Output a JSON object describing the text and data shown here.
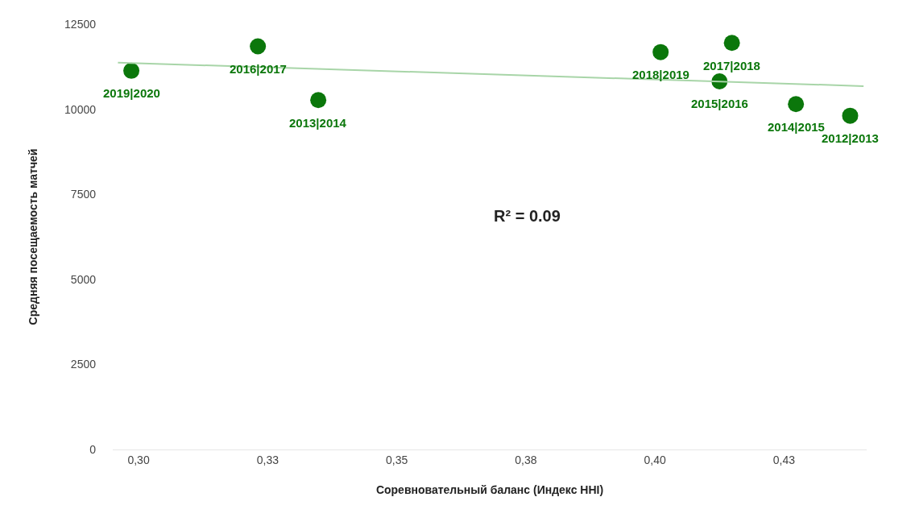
{
  "chart_data": {
    "type": "scatter",
    "xlabel": "Соревновательный баланс (Индекс HHI)",
    "ylabel": "Средняя посещаемость матчей",
    "xlim": [
      0.295,
      0.441
    ],
    "ylim": [
      0,
      12500
    ],
    "xticks": [
      {
        "value": 0.3,
        "label": "0,30"
      },
      {
        "value": 0.325,
        "label": "0,33"
      },
      {
        "value": 0.35,
        "label": "0,35"
      },
      {
        "value": 0.375,
        "label": "0,38"
      },
      {
        "value": 0.4,
        "label": "0,40"
      },
      {
        "value": 0.425,
        "label": "0,43"
      }
    ],
    "yticks": [
      0,
      2500,
      5000,
      7500,
      10000,
      12500
    ],
    "marker": "circle",
    "series": [
      {
        "color": "#0b770b",
        "x": [
          0.2986,
          0.3231,
          0.3348,
          0.4011,
          0.4149,
          0.4125,
          0.4273,
          0.4378
        ],
        "values": [
          11130,
          11850,
          10270,
          11680,
          11950,
          10820,
          10150,
          9810
        ]
      },
      {
        "type": "line",
        "color": "#a8d5a8",
        "x": [
          0.296,
          0.4404
        ],
        "values": [
          11370,
          10680
        ],
        "marker": "none"
      }
    ],
    "annotations": [
      {
        "text": "2019|2020",
        "x": 0.2986,
        "y": 11130
      },
      {
        "text": "2016|2017",
        "x": 0.3231,
        "y": 11850
      },
      {
        "text": "2013|2014",
        "x": 0.3348,
        "y": 10270
      },
      {
        "text": "2018|2019",
        "x": 0.4011,
        "y": 11680
      },
      {
        "text": "2017|2018",
        "x": 0.4149,
        "y": 11950
      },
      {
        "text": "2015|2016",
        "x": 0.4125,
        "y": 10820
      },
      {
        "text": "2014|2015",
        "x": 0.4273,
        "y": 10150
      },
      {
        "text": "2012|2013",
        "x": 0.4378,
        "y": 9810
      },
      "R² = 0.09"
    ]
  }
}
